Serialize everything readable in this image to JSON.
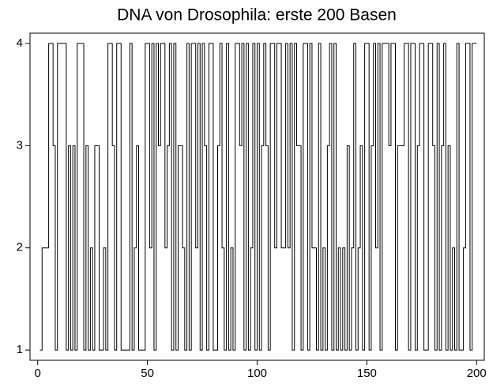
{
  "chart_data": {
    "type": "line",
    "drawstyle": "steps-post",
    "title": "DNA von Drosophila: erste 200 Basen",
    "x": [
      1,
      2,
      3,
      4,
      5,
      6,
      7,
      8,
      9,
      10,
      11,
      12,
      13,
      14,
      15,
      16,
      17,
      18,
      19,
      20,
      21,
      22,
      23,
      24,
      25,
      26,
      27,
      28,
      29,
      30,
      31,
      32,
      33,
      34,
      35,
      36,
      37,
      38,
      39,
      40,
      41,
      42,
      43,
      44,
      45,
      46,
      47,
      48,
      49,
      50,
      51,
      52,
      53,
      54,
      55,
      56,
      57,
      58,
      59,
      60,
      61,
      62,
      63,
      64,
      65,
      66,
      67,
      68,
      69,
      70,
      71,
      72,
      73,
      74,
      75,
      76,
      77,
      78,
      79,
      80,
      81,
      82,
      83,
      84,
      85,
      86,
      87,
      88,
      89,
      90,
      91,
      92,
      93,
      94,
      95,
      96,
      97,
      98,
      99,
      100,
      101,
      102,
      103,
      104,
      105,
      106,
      107,
      108,
      109,
      110,
      111,
      112,
      113,
      114,
      115,
      116,
      117,
      118,
      119,
      120,
      121,
      122,
      123,
      124,
      125,
      126,
      127,
      128,
      129,
      130,
      131,
      132,
      133,
      134,
      135,
      136,
      137,
      138,
      139,
      140,
      141,
      142,
      143,
      144,
      145,
      146,
      147,
      148,
      149,
      150,
      151,
      152,
      153,
      154,
      155,
      156,
      157,
      158,
      159,
      160,
      161,
      162,
      163,
      164,
      165,
      166,
      167,
      168,
      169,
      170,
      171,
      172,
      173,
      174,
      175,
      176,
      177,
      178,
      179,
      180,
      181,
      182,
      183,
      184,
      185,
      186,
      187,
      188,
      189,
      190,
      191,
      192,
      193,
      194,
      195,
      196,
      197,
      198,
      199,
      200
    ],
    "series": [
      {
        "color": "#000000",
        "values": [
          1,
          2,
          2,
          2,
          4,
          4,
          3,
          1,
          4,
          4,
          4,
          4,
          1,
          3,
          1,
          3,
          1,
          4,
          4,
          4,
          1,
          3,
          1,
          2,
          1,
          3,
          3,
          1,
          1,
          2,
          1,
          4,
          4,
          3,
          1,
          4,
          4,
          1,
          1,
          1,
          1,
          4,
          1,
          2,
          3,
          1,
          1,
          1,
          4,
          4,
          2,
          4,
          1,
          4,
          3,
          4,
          4,
          2,
          3,
          4,
          1,
          4,
          1,
          3,
          3,
          2,
          1,
          4,
          1,
          4,
          4,
          2,
          4,
          1,
          4,
          3,
          1,
          4,
          4,
          1,
          1,
          3,
          4,
          2,
          1,
          4,
          1,
          2,
          1,
          4,
          4,
          3,
          4,
          1,
          4,
          1,
          2,
          4,
          1,
          4,
          1,
          3,
          4,
          3,
          1,
          4,
          4,
          2,
          4,
          4,
          2,
          2,
          4,
          2,
          4,
          1,
          4,
          3,
          3,
          1,
          4,
          4,
          1,
          4,
          2,
          2,
          1,
          4,
          1,
          2,
          1,
          3,
          4,
          1,
          4,
          1,
          2,
          1,
          2,
          1,
          3,
          1,
          2,
          4,
          1,
          2,
          3,
          1,
          4,
          4,
          1,
          3,
          4,
          2,
          4,
          1,
          4,
          4,
          4,
          3,
          4,
          4,
          1,
          3,
          3,
          3,
          4,
          4,
          1,
          4,
          4,
          1,
          3,
          4,
          4,
          1,
          1,
          4,
          4,
          3,
          1,
          4,
          1,
          3,
          4,
          1,
          3,
          1,
          2,
          1,
          4,
          1,
          1,
          2,
          4,
          4,
          1,
          4,
          4,
          4
        ]
      }
    ],
    "xlim": [
      -3.5,
      203.5
    ],
    "xticks": [
      0,
      50,
      100,
      150,
      200
    ],
    "ylim": [
      0.9,
      4.1
    ],
    "yticks": [
      1,
      2,
      3,
      4
    ]
  }
}
